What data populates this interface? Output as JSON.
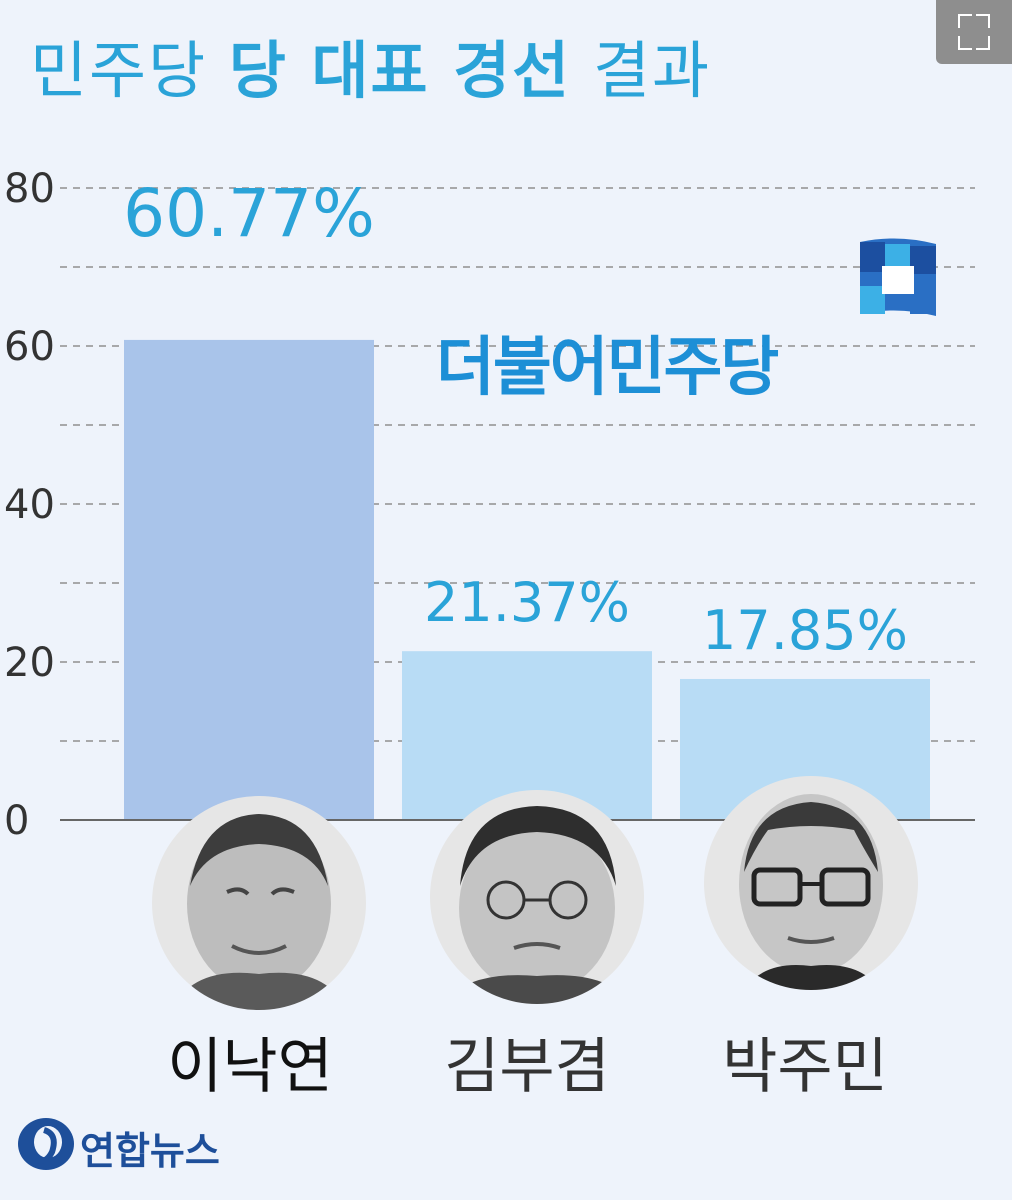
{
  "title": {
    "part1": "민주당",
    "part2": "당 대표 경선",
    "part3": "결과"
  },
  "party": {
    "name": "더불어민주당"
  },
  "logo": {
    "text": "연합뉴스"
  },
  "colors": {
    "leader_bar": "#a9c4ea",
    "other_bar": "#b8dcf5",
    "accent": "#2aa3d8",
    "gridline": "#8f8f8f"
  },
  "chart_data": {
    "type": "bar",
    "categories": [
      "이낙연",
      "김부겸",
      "박주민"
    ],
    "values": [
      60.77,
      21.37,
      17.85
    ],
    "value_labels": [
      "60.77%",
      "21.37%",
      "17.85%"
    ],
    "ylim": [
      0,
      80
    ],
    "yticks": [
      0,
      20,
      40,
      60,
      80
    ],
    "grid": true
  }
}
